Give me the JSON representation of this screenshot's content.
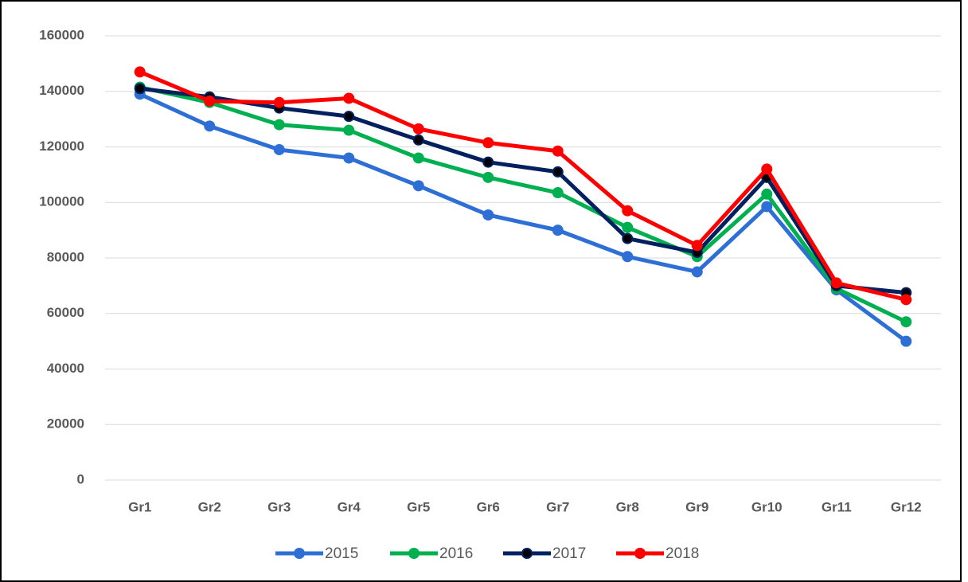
{
  "chart_data": {
    "type": "line",
    "categories": [
      "Gr1",
      "Gr2",
      "Gr3",
      "Gr4",
      "Gr5",
      "Gr6",
      "Gr7",
      "Gr8",
      "Gr9",
      "Gr10",
      "Gr11",
      "Gr12"
    ],
    "series": [
      {
        "name": "2015",
        "color": "#2e6fd6",
        "values": [
          139000,
          127500,
          119000,
          116000,
          106000,
          95500,
          90000,
          80500,
          75000,
          98500,
          68500,
          50000
        ]
      },
      {
        "name": "2016",
        "color": "#00b050",
        "values": [
          141500,
          136000,
          128000,
          126000,
          116000,
          109000,
          103500,
          91000,
          80500,
          103000,
          69000,
          57000
        ]
      },
      {
        "name": "2017",
        "color": "#002060",
        "values": [
          141000,
          138000,
          134000,
          131000,
          122500,
          114500,
          111000,
          87000,
          82000,
          109000,
          70000,
          67500
        ]
      },
      {
        "name": "2018",
        "color": "#ff0000",
        "values": [
          147000,
          136500,
          136000,
          137500,
          126500,
          121500,
          118500,
          97000,
          84500,
          112000,
          71000,
          65000
        ]
      }
    ],
    "ylim": [
      0,
      160000
    ],
    "yticks": [
      0,
      20000,
      40000,
      60000,
      80000,
      100000,
      120000,
      140000,
      160000
    ],
    "grid": true,
    "legend": "bottom"
  }
}
